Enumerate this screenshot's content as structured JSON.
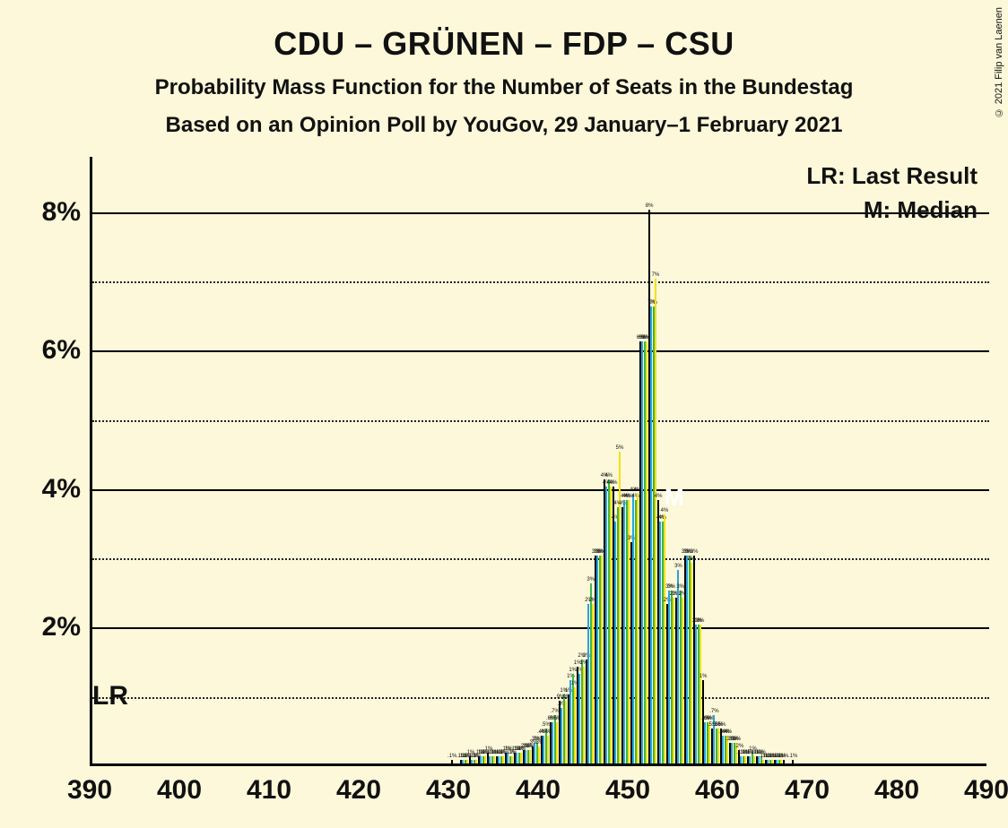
{
  "title": "CDU – GRÜNEN – FDP – CSU",
  "title_fontsize": 36,
  "subtitle1": "Probability Mass Function for the Number of Seats in the Bundestag",
  "subtitle2": "Based on an Opinion Poll by YouGov, 29 January–1 February 2021",
  "subtitle_fontsize": 24,
  "copyright": "© 2021 Filip van Laenen",
  "legend_lr": "LR: Last Result",
  "legend_m": "M: Median",
  "legend_fontsize": 26,
  "lr_label": "LR",
  "lr_x": 393,
  "m_label": "M",
  "m_x": 455,
  "m_y": 3.9,
  "background_color": "#fcf8d9",
  "axis_color": "#000000",
  "grid_solid_color": "#000000",
  "grid_dotted_color": "#222222",
  "xlim": [
    390,
    490
  ],
  "ylim": [
    0,
    8.8
  ],
  "xticks": [
    390,
    400,
    410,
    420,
    430,
    440,
    450,
    460,
    470,
    480,
    490
  ],
  "yticks_solid": [
    2,
    4,
    6,
    8
  ],
  "yticks_dotted": [
    1,
    3,
    5,
    7
  ],
  "ytick_labels": [
    "2%",
    "4%",
    "6%",
    "8%"
  ],
  "series_colors": [
    "#000000",
    "#2aa3e0",
    "#3fb54a",
    "#f2e10a"
  ],
  "bars": [
    {
      "x": 430,
      "v": [
        0.05,
        0,
        0,
        0
      ]
    },
    {
      "x": 431,
      "v": [
        0.05,
        0.05,
        0.05,
        0.05
      ]
    },
    {
      "x": 432,
      "v": [
        0.1,
        0.05,
        0.05,
        0.05
      ]
    },
    {
      "x": 433,
      "v": [
        0.1,
        0.1,
        0.1,
        0.1
      ]
    },
    {
      "x": 434,
      "v": [
        0.15,
        0.1,
        0.1,
        0.1
      ]
    },
    {
      "x": 435,
      "v": [
        0.1,
        0.1,
        0.1,
        0.1
      ]
    },
    {
      "x": 436,
      "v": [
        0.15,
        0.15,
        0.1,
        0.1
      ]
    },
    {
      "x": 437,
      "v": [
        0.15,
        0.15,
        0.15,
        0.15
      ]
    },
    {
      "x": 438,
      "v": [
        0.2,
        0.2,
        0.2,
        0.2
      ]
    },
    {
      "x": 439,
      "v": [
        0.25,
        0.3,
        0.3,
        0.25
      ]
    },
    {
      "x": 440,
      "v": [
        0.4,
        0.4,
        0.5,
        0.4
      ]
    },
    {
      "x": 441,
      "v": [
        0.6,
        0.6,
        0.7,
        0.6
      ]
    },
    {
      "x": 442,
      "v": [
        0.9,
        0.8,
        1.0,
        0.9
      ]
    },
    {
      "x": 443,
      "v": [
        1.0,
        1.2,
        1.3,
        1.1
      ]
    },
    {
      "x": 444,
      "v": [
        1.4,
        1.3,
        1.5,
        1.4
      ]
    },
    {
      "x": 445,
      "v": [
        1.5,
        2.3,
        2.6,
        2.3
      ]
    },
    {
      "x": 446,
      "v": [
        3.0,
        3.0,
        3.0,
        3.0
      ]
    },
    {
      "x": 447,
      "v": [
        4.1,
        4.0,
        4.1,
        4.0
      ]
    },
    {
      "x": 448,
      "v": [
        4.0,
        3.5,
        3.7,
        4.5
      ]
    },
    {
      "x": 449,
      "v": [
        3.7,
        3.8,
        3.8,
        3.8
      ]
    },
    {
      "x": 450,
      "v": [
        3.2,
        3.9,
        3.8,
        3.9
      ]
    },
    {
      "x": 451,
      "v": [
        6.1,
        6.1,
        6.1,
        6.1
      ]
    },
    {
      "x": 452,
      "v": [
        8.0,
        6.6,
        6.6,
        7.0
      ]
    },
    {
      "x": 453,
      "v": [
        3.8,
        3.5,
        3.5,
        3.6
      ]
    },
    {
      "x": 454,
      "v": [
        2.3,
        2.5,
        2.5,
        2.4
      ]
    },
    {
      "x": 455,
      "v": [
        2.4,
        2.8,
        2.5,
        2.4
      ]
    },
    {
      "x": 456,
      "v": [
        3.0,
        3.0,
        3.0,
        2.9
      ]
    },
    {
      "x": 457,
      "v": [
        3.0,
        2.0,
        2.0,
        2.0
      ]
    },
    {
      "x": 458,
      "v": [
        1.2,
        0.6,
        0.6,
        0.6
      ]
    },
    {
      "x": 459,
      "v": [
        0.5,
        0.7,
        0.5,
        0.5
      ]
    },
    {
      "x": 460,
      "v": [
        0.5,
        0.4,
        0.4,
        0.4
      ]
    },
    {
      "x": 461,
      "v": [
        0.3,
        0.3,
        0.3,
        0.3
      ]
    },
    {
      "x": 462,
      "v": [
        0.2,
        0.1,
        0.1,
        0.1
      ]
    },
    {
      "x": 463,
      "v": [
        0.1,
        0.1,
        0.15,
        0.1
      ]
    },
    {
      "x": 464,
      "v": [
        0.1,
        0.1,
        0.1,
        0.05
      ]
    },
    {
      "x": 465,
      "v": [
        0.05,
        0.05,
        0.05,
        0.05
      ]
    },
    {
      "x": 466,
      "v": [
        0.05,
        0.05,
        0.05,
        0.05
      ]
    },
    {
      "x": 467,
      "v": [
        0.05,
        0,
        0,
        0
      ]
    },
    {
      "x": 468,
      "v": [
        0.05,
        0,
        0,
        0
      ]
    }
  ]
}
